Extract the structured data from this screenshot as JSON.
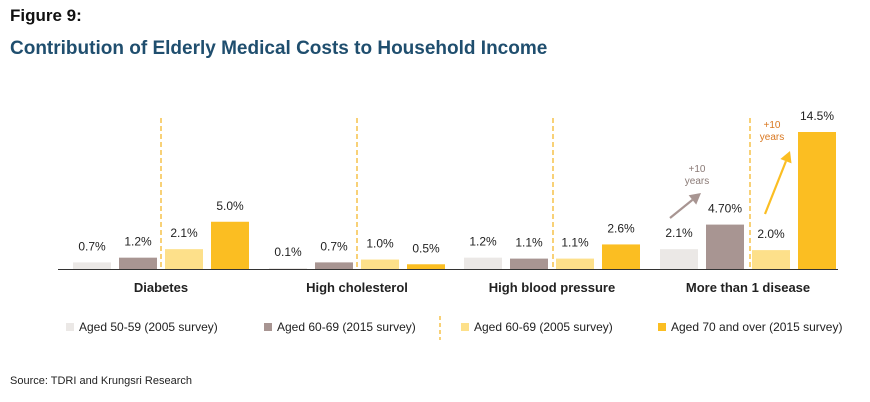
{
  "header": {
    "figure_label": "Figure 9:",
    "title": "Contribution of Elderly Medical Costs to Household Income"
  },
  "source": "Source: TDRI and Krungsri Research",
  "colors": {
    "aged_50_59_2005": "#ebe8e6",
    "aged_60_69_2015": "#a89592",
    "aged_60_69_2005": "#fde08a",
    "aged_70_over_2015": "#fbbe22",
    "divider": "#f5b82e",
    "arrow_grey": "#a89592",
    "arrow_gold": "#fbbe22",
    "annotation_grey": "#8a7a76",
    "annotation_orange": "#d9771f"
  },
  "chart_data": {
    "type": "bar",
    "title": "Contribution of Elderly Medical Costs to Household Income",
    "categories": [
      "Diabetes",
      "High cholesterol",
      "High blood pressure",
      "More than 1 disease"
    ],
    "series": [
      {
        "name": "Aged 50-59 (2005 survey)",
        "values": [
          0.7,
          0.1,
          1.2,
          2.1
        ],
        "labels": [
          "0.7%",
          "0.1%",
          "1.2%",
          "2.1%"
        ]
      },
      {
        "name": "Aged 60-69 (2015 survey)",
        "values": [
          1.2,
          0.7,
          1.1,
          4.7
        ],
        "labels": [
          "1.2%",
          "0.7%",
          "1.1%",
          "4.70%"
        ]
      },
      {
        "name": "Aged 60-69 (2005 survey)",
        "values": [
          2.1,
          1.0,
          1.1,
          2.0
        ],
        "labels": [
          "2.1%",
          "1.0%",
          "1.1%",
          "2.0%"
        ]
      },
      {
        "name": "Aged 70 and over (2015 survey)",
        "values": [
          5.0,
          0.5,
          2.6,
          14.5
        ],
        "labels": [
          "5.0%",
          "0.5%",
          "2.6%",
          "14.5%"
        ]
      }
    ],
    "ylim": [
      0,
      14.5
    ],
    "grid": false,
    "legend_position": "bottom",
    "annotations": [
      {
        "text_lines": [
          "+10",
          "years"
        ],
        "category": "More than 1 disease",
        "from_series": 0,
        "to_series": 1
      },
      {
        "text_lines": [
          "+10",
          "years"
        ],
        "category": "More than 1 disease",
        "from_series": 2,
        "to_series": 3
      }
    ]
  }
}
